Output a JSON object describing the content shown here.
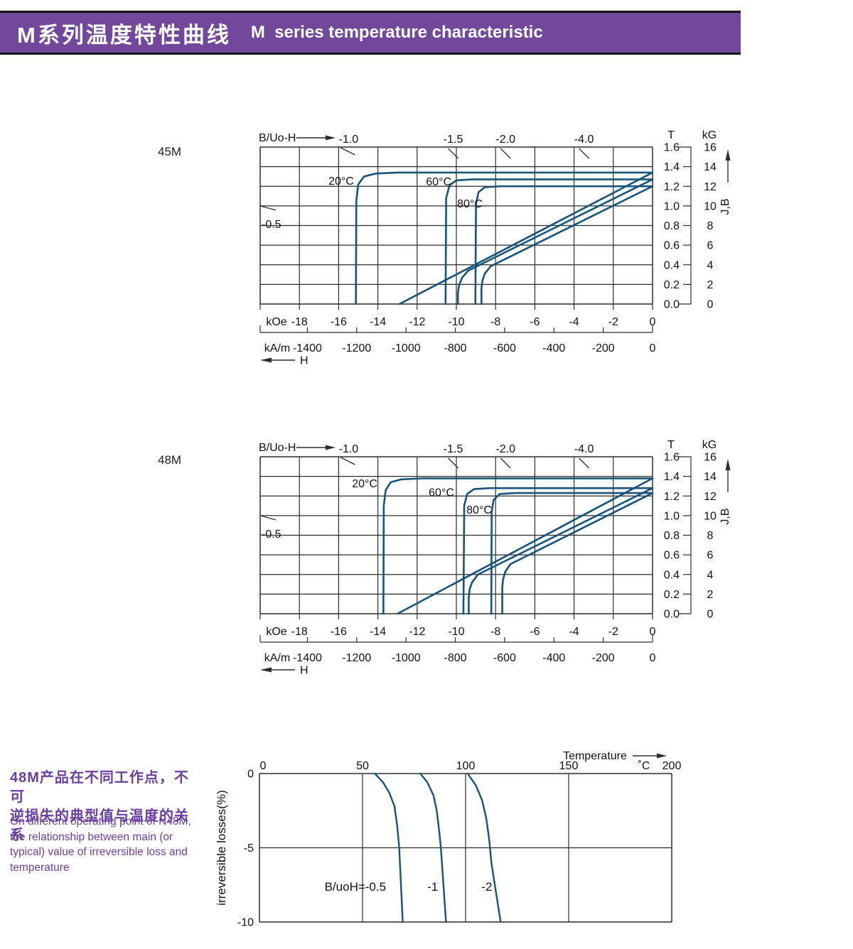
{
  "header": {
    "title_zh": "M系列温度特性曲线",
    "title_en": "M  series temperature characteristic"
  },
  "side_note": {
    "zh_lines": [
      "48M产品在不同工作点，不可",
      "逆损失的典型值与温度的关系"
    ],
    "en_lines": [
      "On different operating point of N48M,",
      "the relationship between main (or",
      "typical) value of irreversible loss and",
      "temperature"
    ]
  },
  "colors": {
    "band": "#72489b",
    "band_text": "#ffffff",
    "purple_text": "#6b3fa0",
    "curve": "#185379",
    "grid": "#2d2d2d",
    "text": "#111111"
  },
  "chart_data": [
    {
      "id": "demag-45m",
      "type": "line",
      "title": "45M",
      "plot_label": "B/Uo-H",
      "load_line_labels_top": [
        {
          "label": "-1.0",
          "bu0h": 1.0
        },
        {
          "label": "-1.5",
          "bu0h": 1.5
        },
        {
          "label": "-2.0",
          "bu0h": 2.0
        },
        {
          "label": "-4.0",
          "bu0h": 4.0
        }
      ],
      "load_line_label_left": {
        "label": "-0.5",
        "bu0h": 0.5
      },
      "x_axis": {
        "unit_primary": "kOe",
        "ticks_primary": [
          -18,
          -16,
          -14,
          -12,
          -10,
          -8,
          -6,
          -4,
          -2,
          0
        ],
        "range_primary": [
          -20,
          0
        ],
        "unit_secondary": "kA/m",
        "ticks_secondary": [
          -1400,
          -1200,
          -1000,
          -800,
          -600,
          -400,
          -200,
          0
        ],
        "arrow_label": "H"
      },
      "y_axis": {
        "unit_left": "T",
        "ticks_left": [
          "1.6",
          "1.4",
          "1.2",
          "1.0",
          "0.8",
          "0.6",
          "0.4",
          "0.2",
          "0.0"
        ],
        "unit_right": "kG",
        "ticks_right": [
          16,
          14,
          12,
          10,
          8,
          6,
          4,
          2,
          0
        ],
        "range_kg": [
          0,
          16
        ],
        "arrow_label": "J,B"
      },
      "series": [
        {
          "name": "20°C",
          "label_at": [
            -15.87,
            12.52
          ],
          "J": [
            [
              0,
              13.4
            ],
            [
              -13.0,
              13.4
            ],
            [
              -14.1,
              13.3
            ],
            [
              -14.7,
              13.0
            ],
            [
              -15.0,
              12.2
            ],
            [
              -15.1,
              10.5
            ],
            [
              -15.12,
              0
            ]
          ],
          "B": [
            [
              0,
              13.4
            ],
            [
              -12.9,
              0
            ]
          ]
        },
        {
          "name": "60°C",
          "label_at": [
            -10.9,
            12.45
          ],
          "J": [
            [
              0,
              12.7
            ],
            [
              -9.2,
              12.7
            ],
            [
              -10.0,
              12.6
            ],
            [
              -10.35,
              12.1
            ],
            [
              -10.52,
              10.8
            ],
            [
              -10.55,
              0
            ]
          ],
          "B": [
            [
              0,
              12.7
            ],
            [
              -9.4,
              3.4
            ],
            [
              -9.7,
              2.7
            ],
            [
              -9.85,
              2.0
            ],
            [
              -9.92,
              1.2
            ],
            [
              -9.92,
              0
            ]
          ]
        },
        {
          "name": "80°C",
          "label_at": [
            -9.31,
            10.21
          ],
          "J": [
            [
              0,
              12.0
            ],
            [
              -7.8,
              12.0
            ],
            [
              -8.55,
              11.9
            ],
            [
              -8.87,
              11.4
            ],
            [
              -9.0,
              10.2
            ],
            [
              -9.03,
              0
            ]
          ],
          "B": [
            [
              0,
              12.0
            ],
            [
              -8.25,
              3.85
            ],
            [
              -8.55,
              3.1
            ],
            [
              -8.67,
              2.4
            ],
            [
              -8.72,
              1.6
            ],
            [
              -8.72,
              0
            ]
          ]
        }
      ]
    },
    {
      "id": "demag-48m",
      "type": "line",
      "title": "48M",
      "plot_label": "B/Uo-H",
      "load_line_labels_top": [
        {
          "label": "-1.0",
          "bu0h": 1.0
        },
        {
          "label": "-1.5",
          "bu0h": 1.5
        },
        {
          "label": "-2.0",
          "bu0h": 2.0
        },
        {
          "label": "-4.0",
          "bu0h": 4.0
        }
      ],
      "load_line_label_left": {
        "label": "-0.5",
        "bu0h": 0.5
      },
      "x_axis": {
        "unit_primary": "kOe",
        "ticks_primary": [
          -18,
          -16,
          -14,
          -12,
          -10,
          -8,
          -6,
          -4,
          -2,
          0
        ],
        "range_primary": [
          -20,
          0
        ],
        "unit_secondary": "kA/m",
        "ticks_secondary": [
          -1400,
          -1200,
          -1000,
          -800,
          -600,
          -400,
          -200,
          0
        ],
        "arrow_label": "H"
      },
      "y_axis": {
        "unit_left": "T",
        "ticks_left": [
          "1.6",
          "1.4",
          "1.2",
          "1.0",
          "0.8",
          "0.6",
          "0.4",
          "0.2",
          "0.0"
        ],
        "unit_right": "kG",
        "ticks_right": [
          16,
          14,
          12,
          10,
          8,
          6,
          4,
          2,
          0
        ],
        "range_kg": [
          0,
          16
        ],
        "arrow_label": "J,B"
      },
      "series": [
        {
          "name": "20°C",
          "label_at": [
            -14.67,
            13.25
          ],
          "J": [
            [
              0,
              13.8
            ],
            [
              -11.7,
              13.8
            ],
            [
              -12.8,
              13.7
            ],
            [
              -13.35,
              13.4
            ],
            [
              -13.6,
              12.6
            ],
            [
              -13.7,
              11.0
            ],
            [
              -13.72,
              0
            ]
          ],
          "B": [
            [
              0,
              13.8
            ],
            [
              -13.0,
              0
            ]
          ]
        },
        {
          "name": "60°C",
          "label_at": [
            -10.76,
            12.35
          ],
          "J": [
            [
              0,
              12.8
            ],
            [
              -8.3,
              12.8
            ],
            [
              -9.1,
              12.7
            ],
            [
              -9.45,
              12.2
            ],
            [
              -9.6,
              11.0
            ],
            [
              -9.64,
              0
            ]
          ],
          "B": [
            [
              0,
              12.8
            ],
            [
              -8.9,
              4.0
            ],
            [
              -9.2,
              3.2
            ],
            [
              -9.32,
              2.5
            ],
            [
              -9.37,
              1.7
            ],
            [
              -9.37,
              0
            ]
          ]
        },
        {
          "name": "80°C",
          "label_at": [
            -8.84,
            10.57
          ],
          "J": [
            [
              0,
              12.3
            ],
            [
              -7.0,
              12.3
            ],
            [
              -7.8,
              12.2
            ],
            [
              -8.1,
              11.6
            ],
            [
              -8.2,
              10.4
            ],
            [
              -8.22,
              0
            ]
          ],
          "B": [
            [
              0,
              12.3
            ],
            [
              -7.25,
              5.05
            ],
            [
              -7.5,
              4.3
            ],
            [
              -7.62,
              3.5
            ],
            [
              -7.66,
              2.7
            ],
            [
              -7.66,
              0
            ]
          ]
        }
      ]
    },
    {
      "id": "loss",
      "type": "line",
      "x_axis": {
        "label": "Temperature",
        "unit": "˚C",
        "ticks": [
          0,
          50,
          100,
          150,
          200
        ],
        "range": [
          0,
          200
        ]
      },
      "y_axis": {
        "label": "irreversible  losses(%)",
        "ticks": [
          0,
          -5,
          -10
        ],
        "range": [
          -10,
          0
        ]
      },
      "series": [
        {
          "name": "B/uoH=-0.5",
          "label_at": [
            46.5,
            -7.6
          ],
          "points": [
            [
              56,
              0
            ],
            [
              60,
              -0.6
            ],
            [
              63,
              -1.3
            ],
            [
              65.5,
              -2.2
            ],
            [
              66.8,
              -3.5
            ],
            [
              67.8,
              -5
            ],
            [
              69.5,
              -10
            ]
          ]
        },
        {
          "name": "-1",
          "label_at": [
            84,
            -7.6
          ],
          "points": [
            [
              78,
              0
            ],
            [
              81.5,
              -0.6
            ],
            [
              84.5,
              -1.5
            ],
            [
              86,
              -2.5
            ],
            [
              87.3,
              -4
            ],
            [
              88,
              -5
            ],
            [
              90.5,
              -10
            ]
          ]
        },
        {
          "name": "-2",
          "label_at": [
            110.3,
            -7.6
          ],
          "points": [
            [
              101,
              0
            ],
            [
              105,
              -0.8
            ],
            [
              108,
              -1.8
            ],
            [
              110,
              -3
            ],
            [
              111.5,
              -4.5
            ],
            [
              112.5,
              -6
            ],
            [
              117,
              -10
            ]
          ]
        }
      ]
    }
  ]
}
